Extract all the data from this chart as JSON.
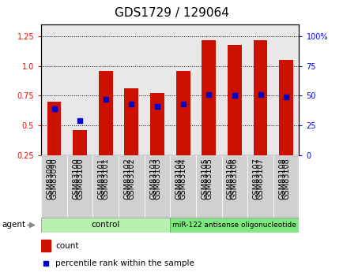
{
  "title": "GDS1729 / 129064",
  "samples": [
    "GSM83090",
    "GSM83100",
    "GSM83101",
    "GSM83102",
    "GSM83103",
    "GSM83104",
    "GSM83105",
    "GSM83106",
    "GSM83107",
    "GSM83108"
  ],
  "count_values": [
    0.7,
    0.46,
    0.96,
    0.81,
    0.77,
    0.96,
    1.22,
    1.18,
    1.22,
    1.05
  ],
  "percentile_values": [
    0.64,
    0.54,
    0.72,
    0.68,
    0.66,
    0.68,
    0.76,
    0.75,
    0.76,
    0.74
  ],
  "groups": [
    {
      "label": "control",
      "start": 0,
      "end": 4,
      "color": "#b8f0b0"
    },
    {
      "label": "miR-122 antisense oligonucleotide",
      "start": 5,
      "end": 9,
      "color": "#80e880"
    }
  ],
  "ylim_left": [
    0.25,
    1.35
  ],
  "ylim_right": [
    0,
    100
  ],
  "yticks_left": [
    0.25,
    0.5,
    0.75,
    1.0,
    1.25
  ],
  "yticks_right": [
    0,
    25,
    50,
    75,
    100
  ],
  "bar_color": "#cc1100",
  "dot_color": "#0000cc",
  "bar_width": 0.55,
  "dot_size": 25,
  "background_color": "#ffffff",
  "plot_bg_color": "#e8e8e8",
  "agent_label": "agent",
  "legend_count_label": "count",
  "legend_pct_label": "percentile rank within the sample",
  "title_fontsize": 11,
  "label_fontsize": 7.5,
  "tick_label_fontsize": 7.0
}
